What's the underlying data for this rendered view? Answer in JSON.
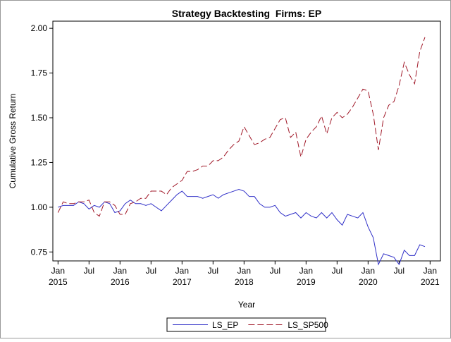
{
  "chart_data": {
    "type": "line",
    "title": "Strategy Backtesting  Firms: EP",
    "x_label": "Year",
    "y_label": "Cumulative Gross Return",
    "x": [
      "2015-01",
      "2015-02",
      "2015-03",
      "2015-04",
      "2015-05",
      "2015-06",
      "2015-07",
      "2015-08",
      "2015-09",
      "2015-10",
      "2015-11",
      "2015-12",
      "2016-01",
      "2016-02",
      "2016-03",
      "2016-04",
      "2016-05",
      "2016-06",
      "2016-07",
      "2016-08",
      "2016-09",
      "2016-10",
      "2016-11",
      "2016-12",
      "2017-01",
      "2017-02",
      "2017-03",
      "2017-04",
      "2017-05",
      "2017-06",
      "2017-07",
      "2017-08",
      "2017-09",
      "2017-10",
      "2017-11",
      "2017-12",
      "2018-01",
      "2018-02",
      "2018-03",
      "2018-04",
      "2018-05",
      "2018-06",
      "2018-07",
      "2018-08",
      "2018-09",
      "2018-10",
      "2018-11",
      "2018-12",
      "2019-01",
      "2019-02",
      "2019-03",
      "2019-04",
      "2019-05",
      "2019-06",
      "2019-07",
      "2019-08",
      "2019-09",
      "2019-10",
      "2019-11",
      "2019-12",
      "2020-01",
      "2020-02",
      "2020-03",
      "2020-04",
      "2020-05",
      "2020-06",
      "2020-07",
      "2020-08",
      "2020-09",
      "2020-10",
      "2020-11",
      "2020-12"
    ],
    "series": [
      {
        "name": "LS_EP",
        "color": "#3030c8",
        "dash": "solid",
        "values": [
          1.0,
          1.01,
          1.01,
          1.01,
          1.03,
          1.02,
          0.99,
          1.01,
          1.0,
          1.03,
          1.02,
          0.97,
          0.98,
          1.02,
          1.04,
          1.02,
          1.02,
          1.01,
          1.02,
          1.0,
          0.98,
          1.01,
          1.04,
          1.07,
          1.09,
          1.06,
          1.06,
          1.06,
          1.05,
          1.06,
          1.07,
          1.05,
          1.07,
          1.08,
          1.09,
          1.1,
          1.09,
          1.06,
          1.06,
          1.02,
          1.0,
          1.0,
          1.01,
          0.97,
          0.95,
          0.96,
          0.97,
          0.94,
          0.97,
          0.95,
          0.94,
          0.97,
          0.94,
          0.97,
          0.93,
          0.9,
          0.96,
          0.95,
          0.94,
          0.97,
          0.89,
          0.83,
          0.68,
          0.74,
          0.73,
          0.72,
          0.68,
          0.76,
          0.73,
          0.73,
          0.79,
          0.78
        ]
      },
      {
        "name": "LS_SP500",
        "color": "#a01828",
        "dash": "dashed",
        "values": [
          0.97,
          1.03,
          1.02,
          1.02,
          1.03,
          1.03,
          1.04,
          0.97,
          0.95,
          1.03,
          1.03,
          1.01,
          0.96,
          0.96,
          1.02,
          1.03,
          1.05,
          1.05,
          1.09,
          1.09,
          1.09,
          1.07,
          1.11,
          1.13,
          1.15,
          1.2,
          1.2,
          1.21,
          1.23,
          1.23,
          1.26,
          1.26,
          1.28,
          1.32,
          1.35,
          1.37,
          1.45,
          1.4,
          1.35,
          1.36,
          1.38,
          1.39,
          1.44,
          1.49,
          1.5,
          1.39,
          1.42,
          1.28,
          1.38,
          1.42,
          1.45,
          1.51,
          1.41,
          1.5,
          1.53,
          1.5,
          1.52,
          1.56,
          1.61,
          1.66,
          1.65,
          1.52,
          1.32,
          1.5,
          1.57,
          1.59,
          1.68,
          1.81,
          1.74,
          1.69,
          1.87,
          1.95
        ]
      }
    ],
    "xlim": [
      "2014-12",
      "2021-03"
    ],
    "xticks": [
      {
        "value": "2015-01",
        "label": "Jan 2015"
      },
      {
        "value": "2015-07",
        "label": "Jul"
      },
      {
        "value": "2016-01",
        "label": "Jan 2016"
      },
      {
        "value": "2016-07",
        "label": "Jul"
      },
      {
        "value": "2017-01",
        "label": "Jan 2017"
      },
      {
        "value": "2017-07",
        "label": "Jul"
      },
      {
        "value": "2018-01",
        "label": "Jan 2018"
      },
      {
        "value": "2018-07",
        "label": "Jul"
      },
      {
        "value": "2019-01",
        "label": "Jan 2019"
      },
      {
        "value": "2019-07",
        "label": "Jul"
      },
      {
        "value": "2020-01",
        "label": "Jan 2020"
      },
      {
        "value": "2020-07",
        "label": "Jul"
      },
      {
        "value": "2021-01",
        "label": "Jan 2021"
      }
    ],
    "ylim": [
      0.7,
      2.04
    ],
    "yticks": [
      0.75,
      {
        "value": 1.0,
        "label": "1.00"
      },
      1.25,
      {
        "value": 1.5,
        "label": "1.50"
      },
      1.75,
      {
        "value": 2.0,
        "label": "2.00"
      }
    ],
    "legend": "bottom"
  }
}
